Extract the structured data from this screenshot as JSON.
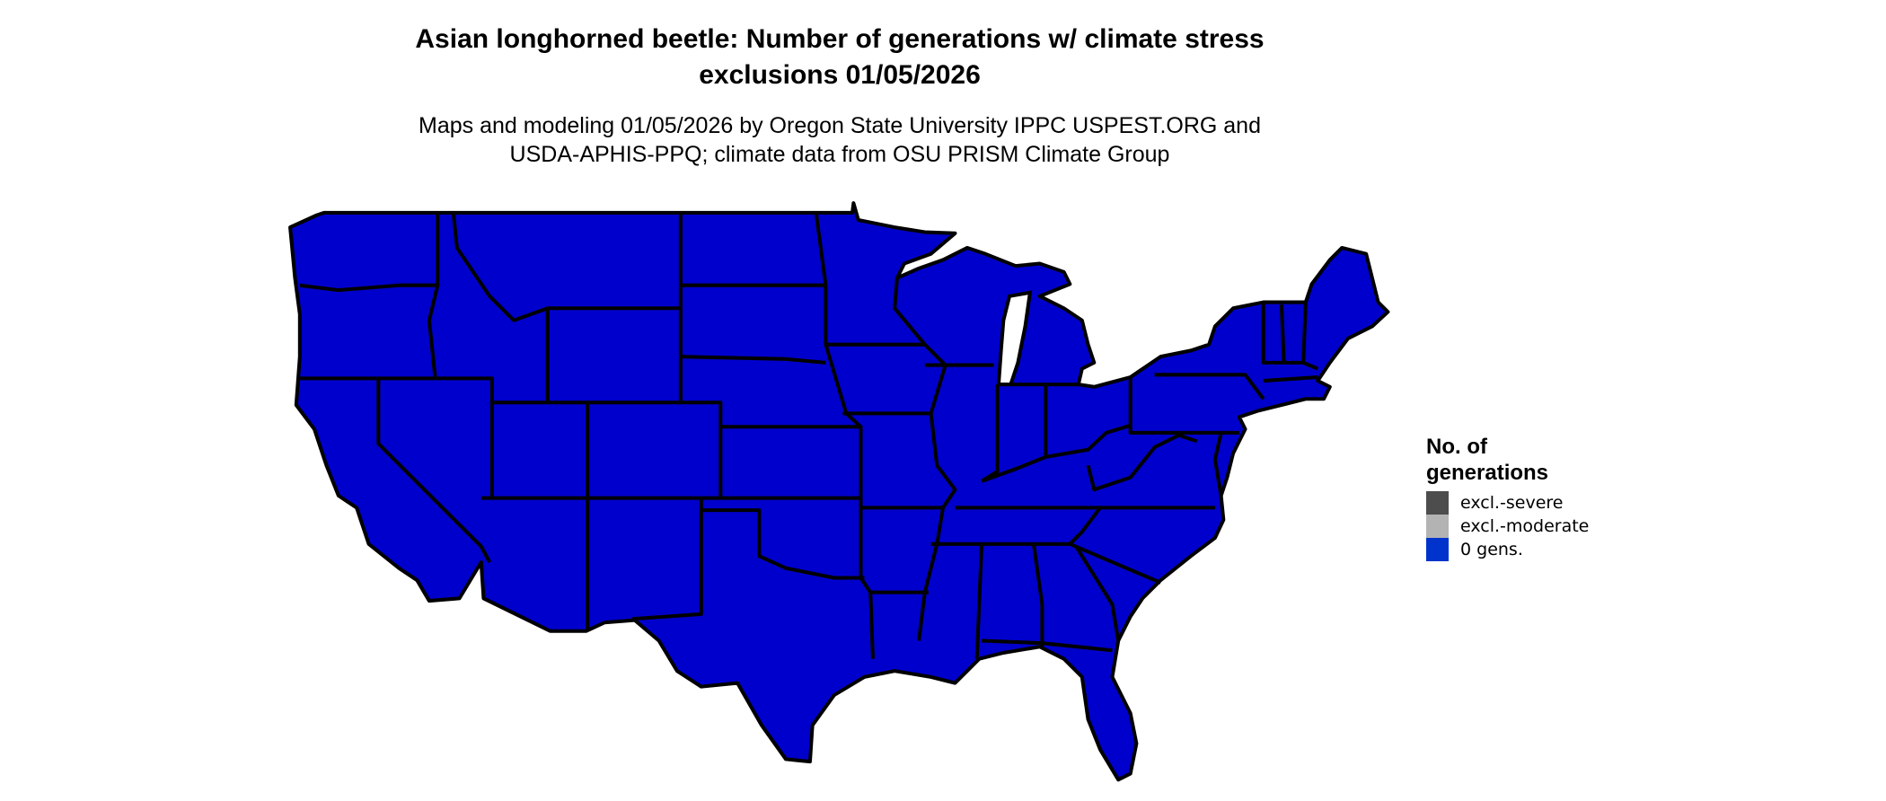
{
  "title": {
    "line1": "Asian longhorned beetle: Number of generations w/ climate stress",
    "line2": "exclusions 01/05/2026"
  },
  "subtitle": {
    "line1": "Maps and modeling 01/05/2026 by Oregon State University IPPC USPEST.ORG and",
    "line2": "USDA-APHIS-PPQ; climate data from OSU PRISM Climate Group"
  },
  "map": {
    "region": "Contiguous United States",
    "fill_color": "#0000CC",
    "border_color": "#000000",
    "displayed_category": "0 gens."
  },
  "legend": {
    "title_line1": "No. of",
    "title_line2": "generations",
    "items": [
      {
        "label": "excl.-severe",
        "color": "#4D4D4D"
      },
      {
        "label": "excl.-moderate",
        "color": "#B3B3B3"
      },
      {
        "label": "0 gens.",
        "color": "#0033CC"
      }
    ]
  }
}
